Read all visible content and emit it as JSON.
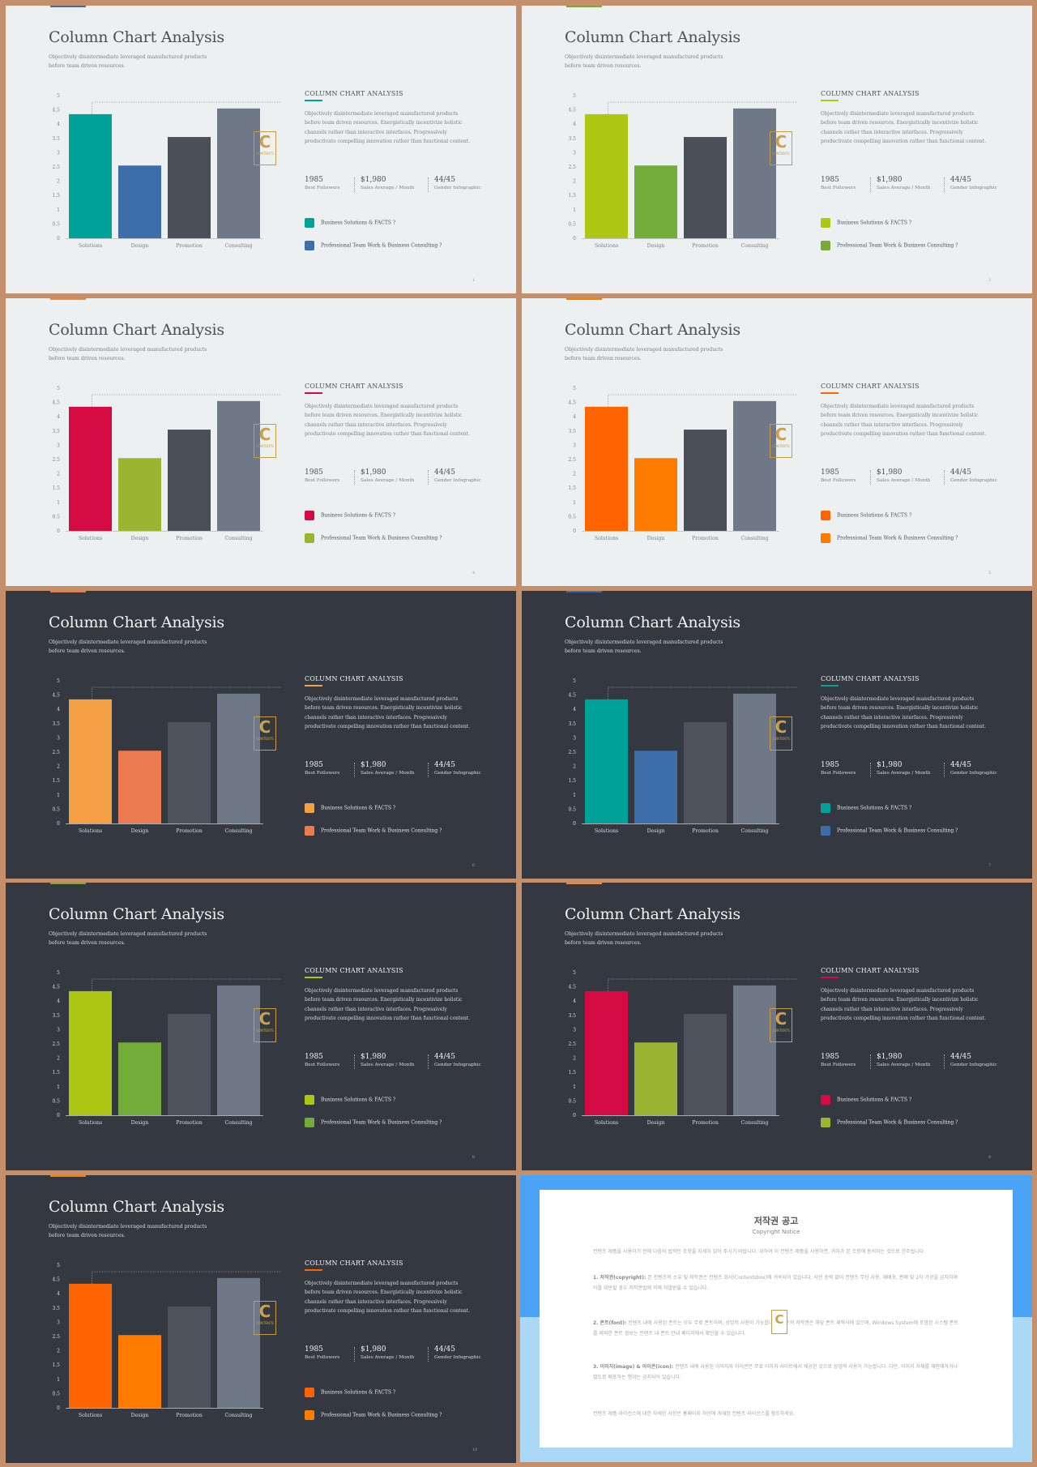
{
  "slide_title": "Column Chart Analysis",
  "slide_subtitle": "Objectively disintermediate leveraged manufactured products before team driven resources.",
  "panel_title": "COLUMN CHART ANALYSIS",
  "panel_body": "Objectively disintermediate leveraged manufactured products before team driven resources. Energistically incentivize holistic channels rather than interactive interfaces. Progressively productivate compelling innovation rather than functional content.",
  "stats": [
    {
      "value": "1985",
      "label": "Best Followers"
    },
    {
      "value": "$1,980",
      "label": "Sales Average / Month"
    },
    {
      "value": "44/45",
      "label": "Gender Infographic"
    }
  ],
  "legend": [
    "Business Solutions & FACTS ?",
    "Professional Team Work & Business Consulting ?"
  ],
  "logo_letter": "C",
  "logo_caption": "CONTENTS",
  "chart_data": {
    "type": "bar",
    "categories": [
      "Solutions",
      "Design",
      "Promotion",
      "Consulting"
    ],
    "values": [
      4.35,
      2.55,
      3.55,
      4.55
    ],
    "ylim": [
      0,
      5
    ],
    "yticks": [
      "0",
      "0.5",
      "1",
      "1.5",
      "2",
      "2.5",
      "3",
      "3.5",
      "4",
      "4.5",
      "5"
    ]
  },
  "slides": [
    {
      "theme": "light",
      "page": "1",
      "colors": [
        "#00a199",
        "#3e6ea9"
      ],
      "accent": "#00a199",
      "topbar": "#3e6ea9"
    },
    {
      "theme": "light",
      "page": "2",
      "colors": [
        "#aec614",
        "#74ac3a"
      ],
      "accent": "#aec614",
      "topbar": "#74ac3a"
    },
    {
      "theme": "light",
      "page": "4",
      "colors": [
        "#d40a43",
        "#9bb431"
      ],
      "accent": "#d40a43",
      "topbar": "#e8883a"
    },
    {
      "theme": "light",
      "page": "5",
      "colors": [
        "#ff6400",
        "#ff7c00"
      ],
      "accent": "#ff6400",
      "topbar": "#ff7c00"
    },
    {
      "theme": "dark",
      "page": "6",
      "colors": [
        "#f6a045",
        "#ec7b52"
      ],
      "accent": "#f6a045",
      "topbar": "#ec7b52"
    },
    {
      "theme": "dark",
      "page": "7",
      "colors": [
        "#00a199",
        "#3e6ea9"
      ],
      "accent": "#00a199",
      "topbar": "#3e6ea9"
    },
    {
      "theme": "dark",
      "page": "8",
      "colors": [
        "#aec614",
        "#74ac3a"
      ],
      "accent": "#aec614",
      "topbar": "#74ac3a"
    },
    {
      "theme": "dark",
      "page": "9",
      "colors": [
        "#d40a43",
        "#9bb431"
      ],
      "accent": "#d40a43",
      "topbar": "#e8883a"
    },
    {
      "theme": "dark",
      "page": "10",
      "colors": [
        "#ff6400",
        "#ff7c00"
      ],
      "accent": "#ff6400",
      "topbar": "#ff7c00"
    }
  ],
  "copyright": {
    "title": "저작권 공고",
    "subtitle": "Copyright Notice",
    "intro": "컨텐츠 제품을 사용하기 전에 다음의 법적인 조항을 자세히 읽어 주시기 바랍니다. 위하여 이 컨텐츠 제품을 사용하면, 귀하가 본 조항에 동의하는 것으로 간주됩니다.",
    "p1_head": "1. 저작권(copyright):",
    "p1": "본 컨텐츠의 소유 및 저작권은 컨텐츠 회사(Contentsbox)에 귀속되어 있습니다. 사전 승락 없이 컨텐츠 무단 사용, 재배포, 판매 및 2차 가공을 금지하며 이를 위반할 경우 저작권법에 의해 처벌받을 수 있습니다.",
    "p2_head": "2. 폰트(font):",
    "p2": "컨텐츠 내에 사용된 폰트는 모두 무료 폰트이며, 상업적 사용이 가능합니다. 폰트의 저작권은 해당 폰트 제작사에 있으며, Windows System에 포함된 시스템 폰트를 제외한 폰트 정보는 컨텐츠 내 폰트 안내 페이지에서 확인할 수 있습니다.",
    "p3_head": "3. 이미지(image) & 아이콘(icon):",
    "p3": "컨텐츠 내에 사용된 이미지와 아이콘은 무료 이미지 사이트에서 제공한 것으로 상업적 사용이 가능합니다. 다만, 이미지 자체를 재판매하거나 별도로 배포하는 행위는 금지되어 있습니다.",
    "outro": "컨텐츠 제품 라이선스에 대한 자세한 사항은 홈페이지 하단에 게재된 컨텐츠 라이선스를 참조하세요."
  }
}
